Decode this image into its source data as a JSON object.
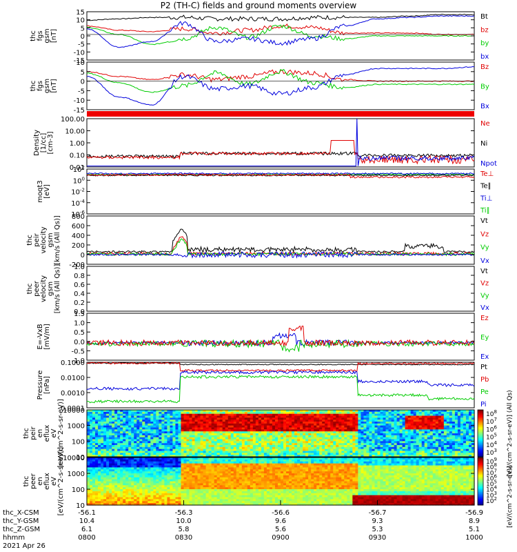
{
  "title": "P2 (TH-C) fields and ground moments overview",
  "colors": {
    "black": "#000000",
    "red": "#e00000",
    "green": "#00cc00",
    "blue": "#0000dd"
  },
  "chart_data": [
    {
      "type": "line",
      "panel": "fgs_gsm",
      "ylabel": [
        "thc",
        "fgs",
        "gsm",
        "[nT]"
      ],
      "yticks": [
        "15",
        "10",
        "5",
        "0",
        "-5",
        "-10",
        "-15"
      ],
      "ylim": [
        -18,
        16
      ],
      "legend": [
        {
          "text": "Bt",
          "color": "#000000"
        },
        {
          "text": "bz",
          "color": "#e00000"
        },
        {
          "text": "by",
          "color": "#00cc00"
        },
        {
          "text": "bx",
          "color": "#0000dd"
        }
      ],
      "x": [
        0,
        10,
        20,
        30,
        40,
        50,
        60,
        70,
        80,
        90,
        100,
        110,
        120
      ],
      "series": [
        {
          "name": "Bt",
          "color": "#000000",
          "values": [
            10,
            11,
            12,
            12,
            11,
            11,
            11,
            12,
            12,
            12,
            13,
            14,
            14
          ]
        },
        {
          "name": "bz",
          "color": "#e00000",
          "values": [
            6,
            3,
            2,
            4,
            1,
            3,
            6,
            5,
            1,
            1,
            1,
            0,
            0
          ]
        },
        {
          "name": "by",
          "color": "#00cc00",
          "values": [
            5,
            0,
            -7,
            -3,
            5,
            -2,
            6,
            -1,
            -3,
            -1,
            -1,
            -1,
            -1
          ]
        },
        {
          "name": "bx",
          "color": "#0000dd",
          "values": [
            4,
            -9,
            -5,
            8,
            -5,
            -3,
            -6,
            -3,
            6,
            11,
            12,
            13,
            13
          ]
        }
      ]
    },
    {
      "type": "line",
      "panel": "fgs_gsm_dsl",
      "ylabel": [
        "thc",
        "fgs",
        "gsm",
        "[nT]"
      ],
      "yticks": [
        "10",
        "5",
        "0",
        "-5",
        "-10",
        "-15"
      ],
      "ylim": [
        -18,
        12
      ],
      "legend": [
        {
          "text": "Bz",
          "color": "#e00000"
        },
        {
          "text": "By",
          "color": "#00cc00"
        },
        {
          "text": "Bx",
          "color": "#0000dd"
        }
      ],
      "x": [
        0,
        10,
        20,
        30,
        40,
        50,
        60,
        70,
        80,
        90,
        100,
        110,
        120
      ],
      "series": [
        {
          "name": "Bz",
          "color": "#e00000",
          "values": [
            6,
            3,
            1,
            4,
            1,
            3,
            6,
            5,
            1,
            0,
            0,
            0,
            0
          ]
        },
        {
          "name": "By",
          "color": "#00cc00",
          "values": [
            5,
            -1,
            -7,
            -3,
            5,
            -2,
            6,
            -1,
            -4,
            -2,
            -2,
            -2,
            -2
          ]
        },
        {
          "name": "Bx",
          "color": "#0000dd",
          "values": [
            3,
            -10,
            -15,
            3,
            -5,
            -3,
            -8,
            -4,
            4,
            8,
            8,
            8,
            9
          ]
        }
      ]
    },
    {
      "type": "line",
      "panel": "density",
      "ylabel": [
        "Density",
        "[1/cc]",
        "[cm-3]"
      ],
      "yticks": [
        "100.00",
        "10.00",
        "1.00",
        "0.10",
        "0.01"
      ],
      "log": true,
      "legend": [
        {
          "text": "Ne",
          "color": "#e00000"
        },
        {
          "text": "Ni",
          "color": "#000000"
        },
        {
          "text": "Npot",
          "color": "#0000dd"
        }
      ]
    },
    {
      "type": "line",
      "panel": "temperature",
      "ylabel": [
        "moqt3",
        "[eV]"
      ],
      "yticks": [
        "10^2",
        "10^0",
        "10^-2",
        "10^-4",
        "10^-6"
      ],
      "log": true,
      "legend": [
        {
          "text": "Te⊥",
          "color": "#e00000"
        },
        {
          "text": "Te∥",
          "color": "#000000"
        },
        {
          "text": "Ti⊥",
          "color": "#0000dd"
        },
        {
          "text": "Ti∥",
          "color": "#00cc00"
        }
      ]
    },
    {
      "type": "line",
      "panel": "peir_velocity",
      "ylabel": [
        "thc",
        "peir",
        "velocity",
        "gsm",
        "[km/s (All Qs)]"
      ],
      "yticks": [
        "800",
        "600",
        "400",
        "200",
        "0",
        "-200"
      ],
      "ylim": [
        -200,
        800
      ],
      "legend": [
        {
          "text": "Vt",
          "color": "#000000"
        },
        {
          "text": "Vz",
          "color": "#e00000"
        },
        {
          "text": "Vy",
          "color": "#00cc00"
        },
        {
          "text": "Vx",
          "color": "#0000dd"
        }
      ]
    },
    {
      "type": "line",
      "panel": "peer_velocity",
      "ylabel": [
        "thc",
        "peer",
        "velocity",
        "gsm",
        "[km/s (All Qs)]"
      ],
      "yticks": [
        "1.0",
        "0.8",
        "0.6",
        "0.4",
        "0.2",
        "0.0"
      ],
      "ylim": [
        0,
        1
      ],
      "legend": [
        {
          "text": "Vt",
          "color": "#000000"
        },
        {
          "text": "Vz",
          "color": "#e00000"
        },
        {
          "text": "Vy",
          "color": "#00cc00"
        },
        {
          "text": "Vx",
          "color": "#0000dd"
        }
      ]
    },
    {
      "type": "line",
      "panel": "e_field",
      "ylabel": [
        "E=-VxB",
        "[mV/m]"
      ],
      "yticks": [
        "1.5",
        "1.0",
        "0.5",
        "0.0",
        "-0.5",
        "-1.0"
      ],
      "ylim": [
        -1.1,
        1.6
      ],
      "legend": [
        {
          "text": "Ez",
          "color": "#e00000"
        },
        {
          "text": "Ey",
          "color": "#00cc00"
        },
        {
          "text": "Ex",
          "color": "#0000dd"
        }
      ]
    },
    {
      "type": "line",
      "panel": "pressure",
      "ylabel": [
        "Pressure",
        "[nPa]"
      ],
      "yticks": [
        "0.1000",
        "0.0100",
        "0.0010",
        "0.0001"
      ],
      "log": true,
      "legend": [
        {
          "text": "Pt",
          "color": "#000000"
        },
        {
          "text": "Pb",
          "color": "#e00000"
        },
        {
          "text": "Pe",
          "color": "#00cc00"
        },
        {
          "text": "Pi",
          "color": "#0000dd"
        }
      ]
    },
    {
      "type": "heatmap",
      "panel": "peir_spec",
      "ylabel": [
        "thc",
        "peir",
        "en",
        "eflux",
        "eV",
        "[eV/(cm^2-s-sr-eV)]"
      ],
      "yticks": [
        "10000",
        "1000",
        "100",
        "10"
      ],
      "colorbar_ticks": [
        "10^8",
        "10^7",
        "10^6",
        "10^5",
        "10^4",
        "10^3"
      ],
      "colorbar_label": "[eV/(cm^2-s-sr-eV)] (All Qs)"
    },
    {
      "type": "heatmap",
      "panel": "peer_spec",
      "ylabel": [
        "thc",
        "peer",
        "en",
        "eflux",
        "eV",
        "[eV/(cm^2-s-sr-eV)]"
      ],
      "yticks": [
        "10000",
        "1000",
        "100",
        "10"
      ],
      "colorbar_ticks": [
        "10^9",
        "10^8",
        "10^7",
        "10^6",
        "10^5",
        "10^4",
        "10^3",
        "10^2"
      ],
      "colorbar_label": "[eV/(cm^2-s-sr-eV)]"
    }
  ],
  "xaxis": {
    "row_labels": [
      "thc_X-CSM",
      "thc_Y-GSM",
      "thc_Z-GSM",
      "hhmm"
    ],
    "footer": "2021 Apr 26",
    "columns": [
      {
        "x": "-56.1",
        "y": "10.4",
        "z": "6.1",
        "t": "0800"
      },
      {
        "x": "-56.3",
        "y": "10.0",
        "z": "5.8",
        "t": "0830"
      },
      {
        "x": "-56.6",
        "y": "9.6",
        "z": "5.6",
        "t": "0900"
      },
      {
        "x": "-56.7",
        "y": "9.3",
        "z": "5.3",
        "t": "0930"
      },
      {
        "x": "-56.9",
        "y": "8.9",
        "z": "5.1",
        "t": "1000"
      }
    ]
  }
}
